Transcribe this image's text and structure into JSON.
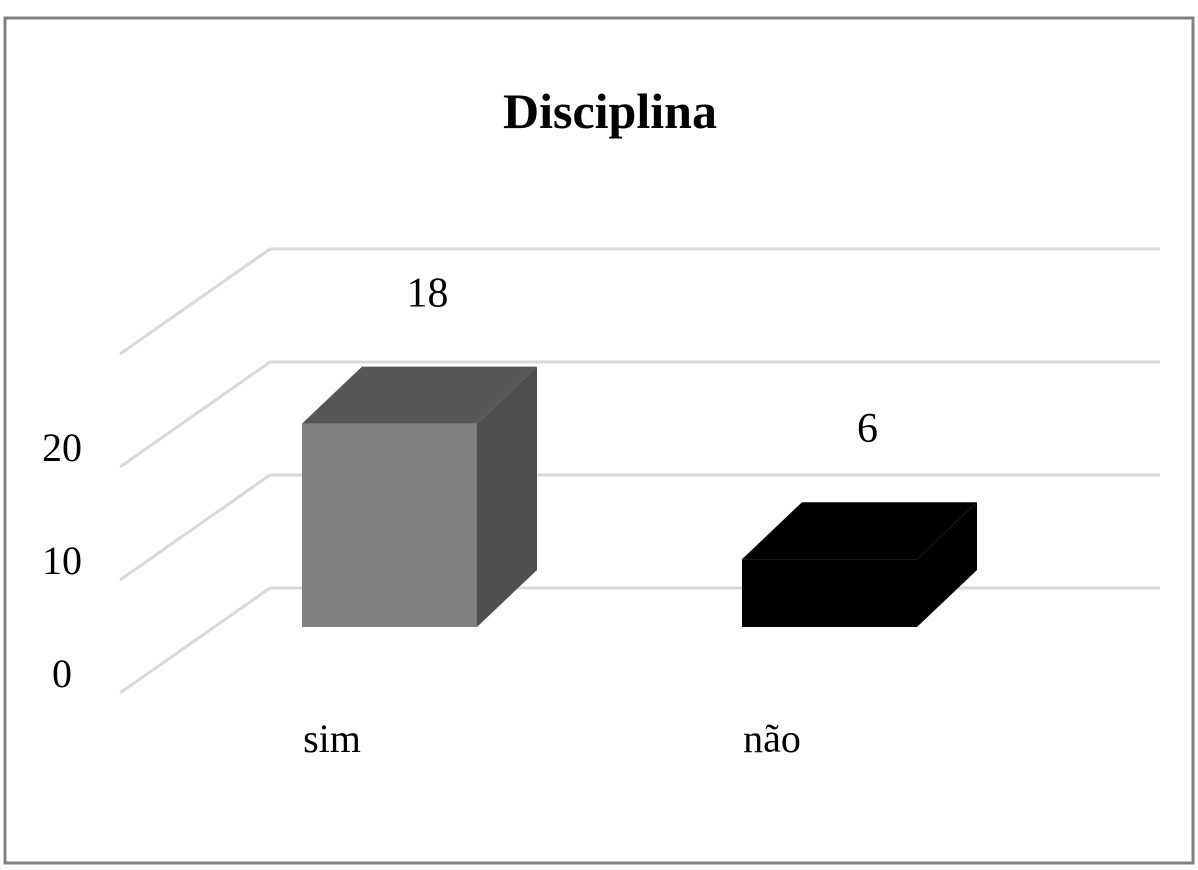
{
  "chart_data": {
    "type": "bar",
    "title": "Disciplina",
    "categories": [
      "sim",
      "não"
    ],
    "values": [
      18,
      6
    ],
    "data_labels": [
      "18",
      "6"
    ],
    "yticks": [
      0,
      10,
      20
    ],
    "ylim": [
      0,
      30
    ],
    "grid": true,
    "legend": false,
    "style": "3d-column",
    "colors": {
      "front": [
        "#808080",
        "#000000"
      ],
      "top": [
        "#575757",
        "#000000"
      ],
      "side": [
        "#4f4f4f",
        "#000000"
      ],
      "grid": "#d9d9d9",
      "border": "#808080",
      "text": "#000000"
    }
  }
}
